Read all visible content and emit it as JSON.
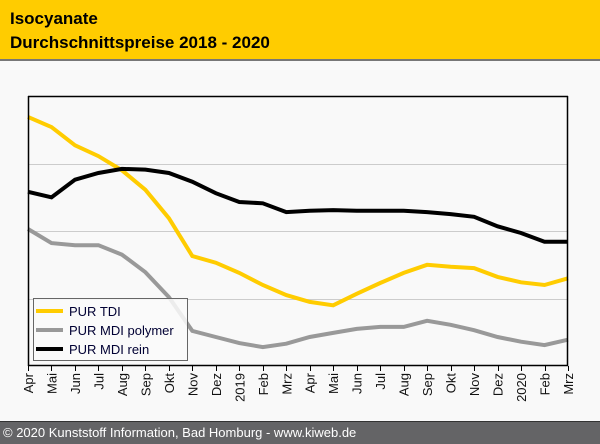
{
  "header": {
    "title": "Isocyanate",
    "subtitle": "Durchschnittspreise 2018 - 2020"
  },
  "footer": {
    "text": "© 2020 Kunststoff Information, Bad Homburg - www.kiweb.de"
  },
  "colors": {
    "header_bg": "#ffcc00",
    "footer_bg": "#646466",
    "tdi": "#ffcc00",
    "mdi_polymer": "#999999",
    "mdi_rein": "#000000",
    "gridline": "#cccccc"
  },
  "chart_data": {
    "type": "line",
    "title": "Isocyanate Durchschnittspreise 2018 - 2020",
    "xlabel": "",
    "ylabel": "",
    "y_units_note": "no y tick labels shown; values in gridline units (0 = bottom axis, 4 = top)",
    "ylim": [
      0,
      4
    ],
    "grid": true,
    "legend_position": "bottom-left",
    "categories": [
      "Apr",
      "Mai",
      "Jun",
      "Jul",
      "Aug",
      "Sep",
      "Okt",
      "Nov",
      "Dez",
      "2019",
      "Feb",
      "Mrz",
      "Apr",
      "Mai",
      "Jun",
      "Jul",
      "Aug",
      "Sep",
      "Okt",
      "Nov",
      "Dez",
      "2020",
      "Feb",
      "Mrz"
    ],
    "series": [
      {
        "name": "PUR TDI",
        "color": "#ffcc00",
        "values": [
          3.69,
          3.54,
          3.27,
          3.11,
          2.9,
          2.61,
          2.19,
          1.63,
          1.53,
          1.38,
          1.2,
          1.05,
          0.95,
          0.9,
          1.07,
          1.23,
          1.38,
          1.5,
          1.47,
          1.45,
          1.32,
          1.24,
          1.2,
          1.3
        ]
      },
      {
        "name": "PUR MDI polymer",
        "color": "#999999",
        "values": [
          2.03,
          1.82,
          1.79,
          1.79,
          1.65,
          1.39,
          1.02,
          0.52,
          0.43,
          0.34,
          0.28,
          0.33,
          0.43,
          0.49,
          0.55,
          0.58,
          0.58,
          0.67,
          0.61,
          0.53,
          0.43,
          0.36,
          0.31,
          0.39
        ]
      },
      {
        "name": "PUR MDI rein",
        "color": "#000000",
        "values": [
          2.58,
          2.5,
          2.76,
          2.86,
          2.92,
          2.91,
          2.86,
          2.73,
          2.56,
          2.43,
          2.41,
          2.28,
          2.3,
          2.31,
          2.3,
          2.3,
          2.3,
          2.28,
          2.25,
          2.21,
          2.07,
          1.97,
          1.84,
          1.84
        ]
      }
    ]
  }
}
